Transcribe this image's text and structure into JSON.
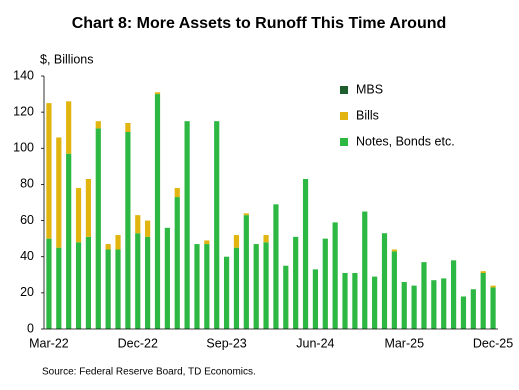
{
  "chart_data": {
    "type": "stacked_bar",
    "title": "Chart 8: More Assets to Runoff This Time Around",
    "y_label": "$, Billions",
    "source": "Source: Federal Reserve Board, TD Economics.",
    "categories": [
      "Mar-22",
      null,
      null,
      null,
      null,
      null,
      null,
      null,
      null,
      "Dec-22",
      null,
      null,
      null,
      null,
      null,
      null,
      null,
      null,
      "Sep-23",
      null,
      null,
      null,
      null,
      null,
      null,
      null,
      null,
      "Jun-24",
      null,
      null,
      null,
      null,
      null,
      null,
      null,
      null,
      "Mar-25",
      null,
      null,
      null,
      null,
      null,
      null,
      null,
      null,
      "Dec-25"
    ],
    "series": [
      {
        "name": "MBS",
        "color": "#1c5e2c",
        "values": [
          0,
          0,
          0,
          0,
          0,
          0,
          0,
          0,
          0,
          0,
          0,
          0,
          0,
          0,
          0,
          0,
          0,
          0,
          0,
          0,
          0,
          0,
          0,
          0,
          0,
          0,
          0,
          0,
          0,
          0,
          0,
          0,
          0,
          0,
          0,
          0,
          0,
          0,
          0,
          0,
          0,
          0,
          0,
          0,
          0,
          0
        ]
      },
      {
        "name": "Bills",
        "color": "#e2b410",
        "values": [
          75,
          61,
          29,
          30,
          32,
          4,
          3,
          8,
          5,
          10,
          9,
          1,
          0,
          5,
          0,
          0,
          2,
          0,
          0,
          7,
          1,
          0,
          4,
          0,
          0,
          0,
          0,
          0,
          0,
          0,
          0,
          0,
          0,
          0,
          0,
          1,
          0,
          0,
          0,
          0,
          0,
          0,
          0,
          0,
          1,
          1
        ]
      },
      {
        "name": "Notes, Bonds etc.",
        "color": "#2db843",
        "values": [
          50,
          45,
          97,
          48,
          51,
          111,
          44,
          44,
          109,
          53,
          51,
          130,
          56,
          73,
          115,
          47,
          47,
          115,
          40,
          45,
          63,
          47,
          48,
          69,
          35,
          51,
          83,
          33,
          50,
          59,
          31,
          31,
          65,
          29,
          53,
          43,
          26,
          24,
          37,
          27,
          28,
          38,
          18,
          22,
          31,
          23
        ]
      }
    ],
    "ylim": [
      0,
      140
    ],
    "yticks": [
      0,
      20,
      40,
      60,
      80,
      100,
      120,
      140
    ]
  }
}
